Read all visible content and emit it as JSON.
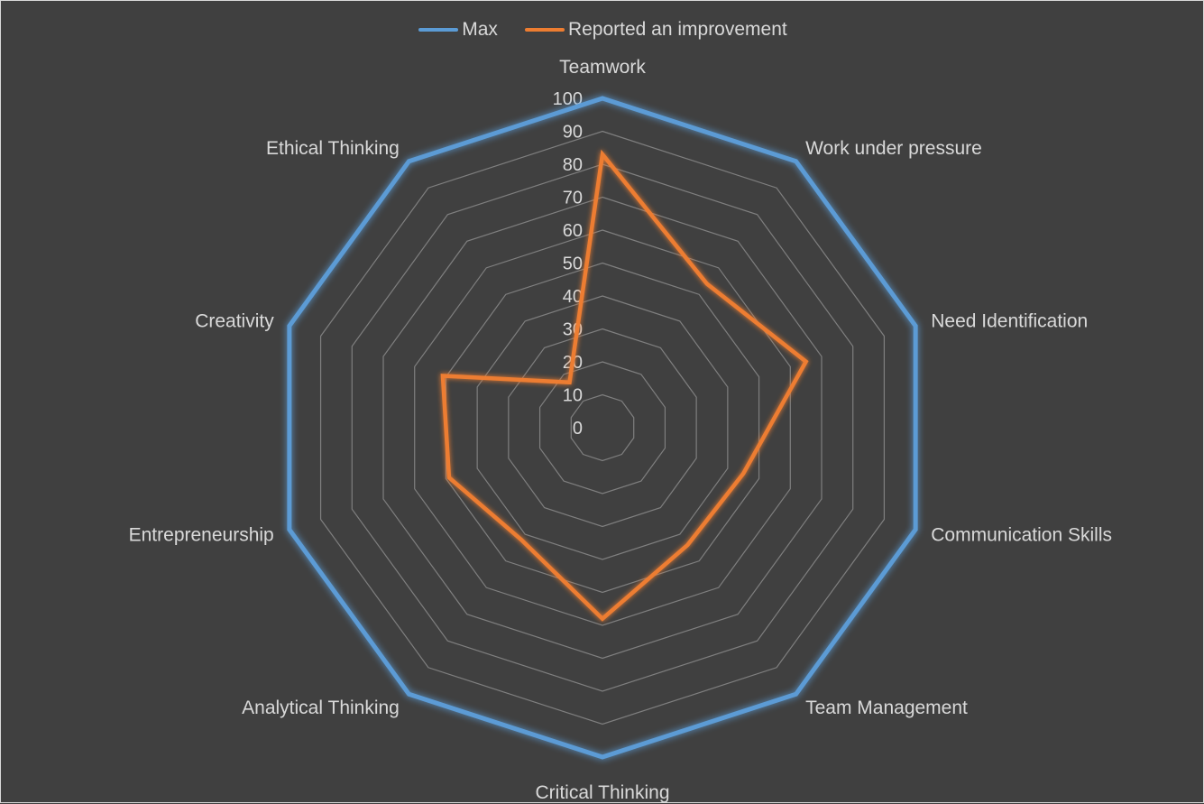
{
  "chart_data": {
    "type": "radar",
    "categories": [
      "Teamwork",
      "Work under pressure",
      "Need Identification",
      "Communication Skills",
      "Team Management",
      "Critical Thinking",
      "Analytical Thinking",
      "Entrepreneurship",
      "Creativity",
      "Ethical Thinking"
    ],
    "series": [
      {
        "name": "Max",
        "color": "#5b9bd5",
        "values": [
          100,
          100,
          100,
          100,
          100,
          100,
          100,
          100,
          100,
          100
        ]
      },
      {
        "name": "Reported an improvement",
        "color": "#ed7d31",
        "values": [
          83,
          54,
          65,
          45,
          44,
          58,
          42,
          49,
          51,
          17
        ]
      }
    ],
    "rlim": [
      0,
      100
    ],
    "ticks": [
      "0",
      "10",
      "20",
      "30",
      "40",
      "50",
      "60",
      "70",
      "80",
      "90",
      "100"
    ],
    "grid": true,
    "legend_position": "top",
    "colors": {
      "background": "#404040",
      "grid": "#7f7f7f",
      "text": "#d9d9d9"
    }
  }
}
